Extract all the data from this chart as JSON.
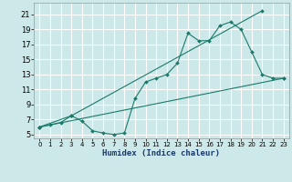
{
  "xlabel": "Humidex (Indice chaleur)",
  "bg_color": "#cce8e8",
  "grid_color": "#ffffff",
  "line_color": "#1a7a6a",
  "xlim": [
    -0.5,
    23.5
  ],
  "ylim": [
    4.5,
    22.5
  ],
  "xticks": [
    0,
    1,
    2,
    3,
    4,
    5,
    6,
    7,
    8,
    9,
    10,
    11,
    12,
    13,
    14,
    15,
    16,
    17,
    18,
    19,
    20,
    21,
    22,
    23
  ],
  "yticks": [
    5,
    7,
    9,
    11,
    13,
    15,
    17,
    19,
    21
  ],
  "series1_x": [
    0,
    1,
    2,
    3,
    4,
    5,
    6,
    7,
    8,
    9,
    10,
    11,
    12,
    13,
    14,
    15,
    16,
    17,
    18,
    19,
    20,
    21,
    22,
    23
  ],
  "series1_y": [
    6.0,
    6.3,
    6.6,
    7.5,
    6.8,
    5.5,
    5.2,
    5.0,
    5.2,
    9.8,
    12.0,
    12.5,
    13.0,
    14.5,
    18.5,
    17.5,
    17.5,
    19.5,
    20.0,
    19.0,
    16.0,
    13.0,
    12.5,
    12.5
  ],
  "series2_x": [
    0,
    23
  ],
  "series2_y": [
    6.0,
    12.5
  ],
  "series3_x": [
    0,
    3,
    21
  ],
  "series3_y": [
    6.0,
    7.5,
    21.5
  ],
  "xlabel_fontsize": 6.5,
  "tick_fontsize_x": 5.0,
  "tick_fontsize_y": 6.0
}
